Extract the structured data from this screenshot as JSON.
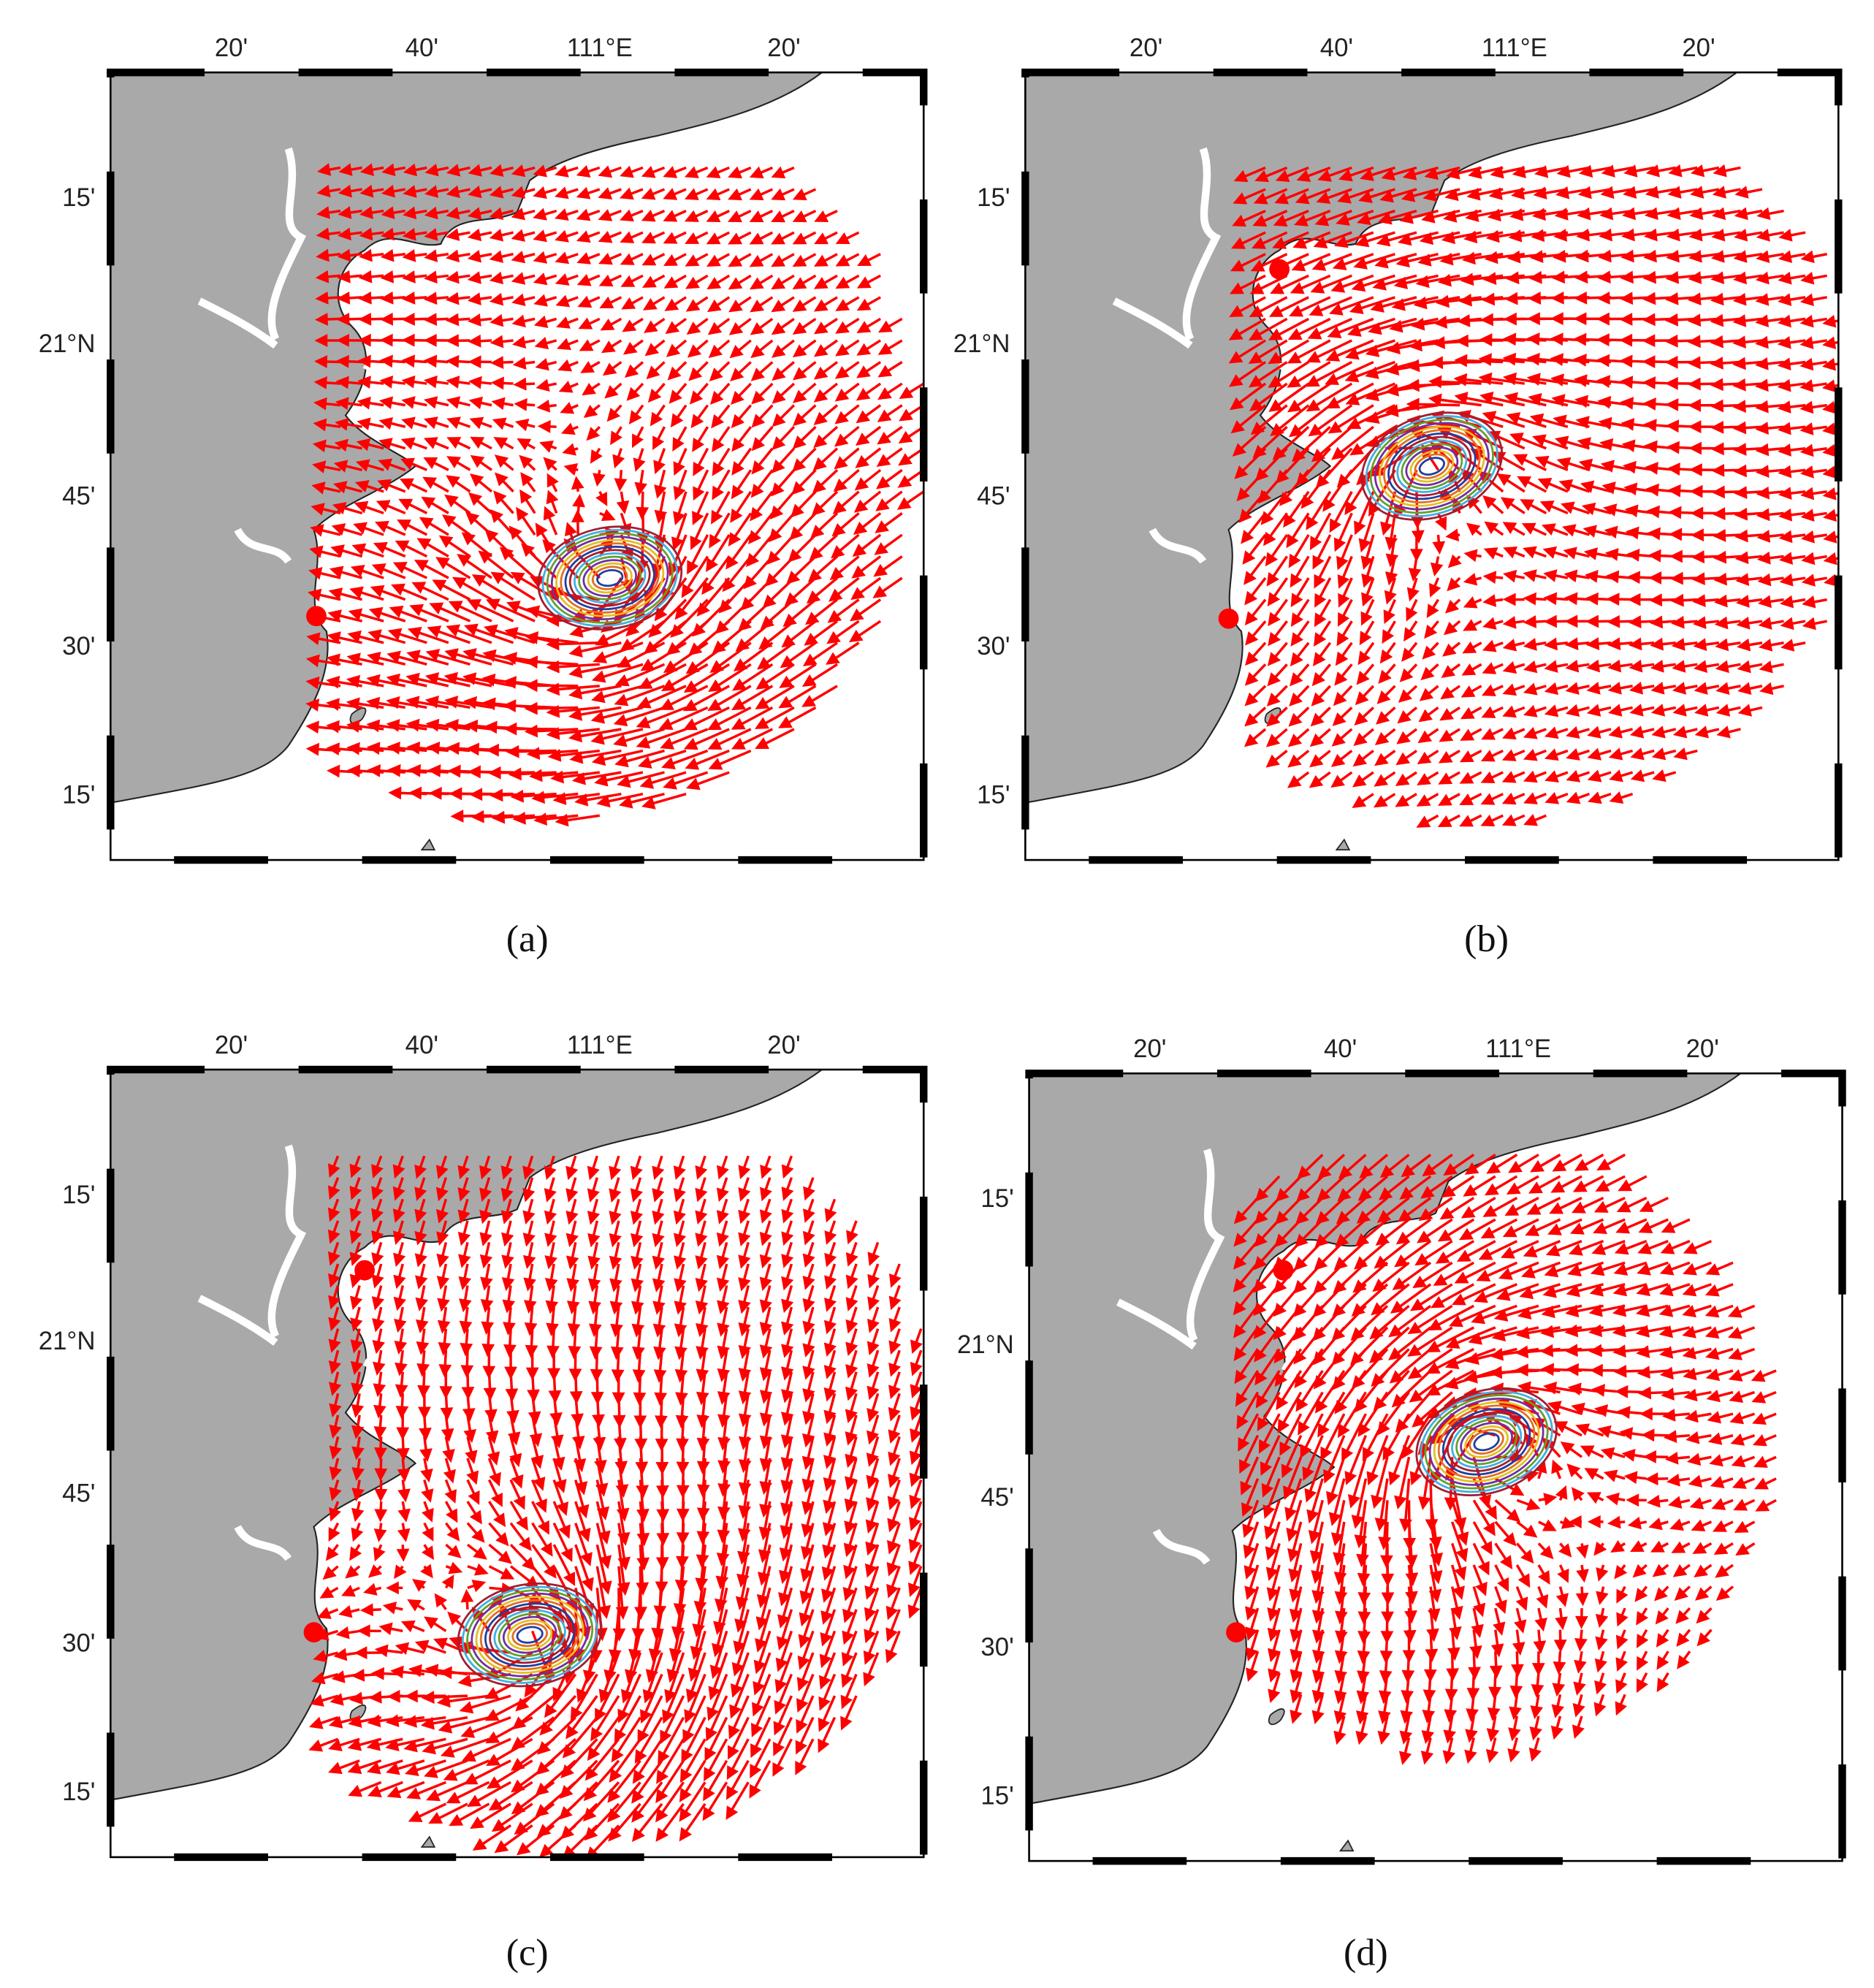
{
  "x_labels": [
    "20'",
    "40'",
    "111°E",
    "20'"
  ],
  "y_labels": [
    "15'",
    "21°N",
    "45'",
    "30'",
    "15'"
  ],
  "panels": [
    {
      "caption": "(a)"
    },
    {
      "caption": "(b)"
    },
    {
      "caption": "(c)"
    },
    {
      "caption": "(d)"
    }
  ]
}
